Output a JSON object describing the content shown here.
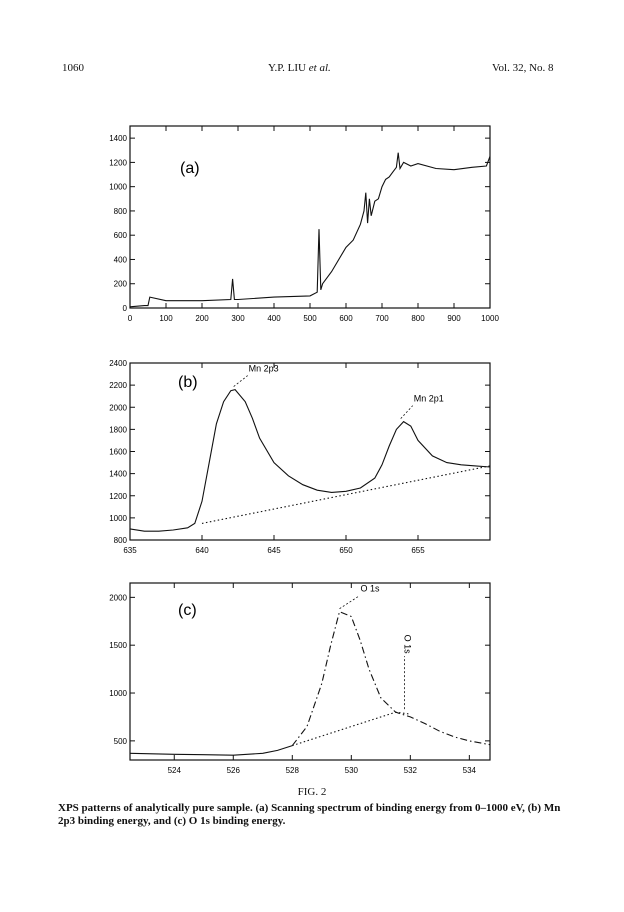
{
  "header": {
    "page_number": "1060",
    "authors": "Y.P. LIU",
    "authors_suffix": "et al.",
    "volume": "Vol. 32, No. 8"
  },
  "caption": {
    "title": "FIG. 2",
    "text": "XPS patterns of analytically pure sample. (a) Scanning spectrum of binding energy from 0–1000 eV, (b) Mn 2p3 binding energy, and (c) O 1s binding energy."
  },
  "chart_data": [
    {
      "type": "line",
      "panel_label": "(a)",
      "xlim": [
        0,
        1000
      ],
      "ylim": [
        0,
        1500
      ],
      "x_ticks": [
        "0",
        "100",
        "200",
        "300",
        "400",
        "500",
        "600",
        "700",
        "800",
        "900",
        "1000"
      ],
      "y_ticks": [
        "0",
        "200",
        "400",
        "600",
        "800",
        "1000",
        "1200",
        "1400"
      ],
      "series": [
        {
          "x": [
            0,
            40,
            50,
            55,
            100,
            200,
            280,
            285,
            290,
            300,
            400,
            500,
            520,
            525,
            530,
            535,
            560,
            600,
            620,
            640,
            650,
            655,
            660,
            665,
            670,
            680,
            690,
            700,
            710,
            720,
            730,
            740,
            745,
            750,
            760,
            780,
            800,
            850,
            900,
            950,
            990,
            1000
          ],
          "y": [
            10,
            20,
            20,
            90,
            60,
            60,
            70,
            240,
            70,
            70,
            90,
            100,
            130,
            650,
            150,
            200,
            300,
            500,
            560,
            690,
            800,
            950,
            700,
            900,
            760,
            880,
            900,
            1000,
            1060,
            1080,
            1120,
            1160,
            1280,
            1150,
            1200,
            1170,
            1190,
            1150,
            1140,
            1160,
            1170,
            1250
          ]
        }
      ]
    },
    {
      "type": "line",
      "panel_label": "(b)",
      "xlim": [
        635,
        660
      ],
      "ylim": [
        800,
        2400
      ],
      "x_ticks": [
        "635",
        "640",
        "645",
        "650",
        "655"
      ],
      "y_ticks": [
        "800",
        "1000",
        "1200",
        "1400",
        "1600",
        "1800",
        "2000",
        "2200",
        "2400"
      ],
      "annotations": [
        "Mn 2p3",
        "Mn 2p1"
      ],
      "series": [
        {
          "style": "solid",
          "x": [
            635,
            636,
            637,
            638,
            639,
            639.5,
            640,
            640.5,
            641,
            641.5,
            642,
            642.3,
            643,
            643.5,
            644,
            645,
            646,
            647,
            648,
            649,
            650,
            651,
            652,
            652.5,
            653,
            653.5,
            654,
            654.5,
            655,
            656,
            657,
            658,
            659,
            660
          ],
          "y": [
            900,
            880,
            880,
            890,
            910,
            950,
            1150,
            1500,
            1850,
            2050,
            2150,
            2160,
            2050,
            1900,
            1720,
            1500,
            1380,
            1300,
            1250,
            1230,
            1240,
            1270,
            1360,
            1480,
            1650,
            1800,
            1870,
            1830,
            1700,
            1560,
            1500,
            1480,
            1470,
            1460
          ]
        },
        {
          "style": "dotted",
          "x": [
            640,
            660
          ],
          "y": [
            950,
            1470
          ]
        }
      ]
    },
    {
      "type": "line",
      "panel_label": "(c)",
      "xlim": [
        522.5,
        534.7
      ],
      "ylim": [
        300,
        2150
      ],
      "x_ticks": [
        "524",
        "526",
        "528",
        "530",
        "532",
        "534"
      ],
      "y_ticks": [
        "500",
        "1000",
        "1500",
        "2000"
      ],
      "annotations": [
        "O 1s",
        "O 1s"
      ],
      "series": [
        {
          "style": "solid",
          "x": [
            522.5,
            524,
            525,
            526,
            527,
            527.5,
            528
          ],
          "y": [
            370,
            360,
            355,
            350,
            370,
            400,
            450
          ]
        },
        {
          "style": "dashdot",
          "x": [
            528,
            528.5,
            529,
            529.3,
            529.6,
            530,
            530.3,
            530.6,
            531,
            531.5,
            532,
            532.5,
            533,
            533.5,
            534,
            534.7
          ],
          "y": [
            450,
            650,
            1100,
            1500,
            1850,
            1800,
            1550,
            1250,
            950,
            800,
            750,
            680,
            600,
            540,
            500,
            460
          ]
        },
        {
          "style": "dotted",
          "x": [
            528,
            530,
            531.5,
            532
          ],
          "y": [
            450,
            650,
            800,
            780
          ]
        }
      ]
    }
  ]
}
